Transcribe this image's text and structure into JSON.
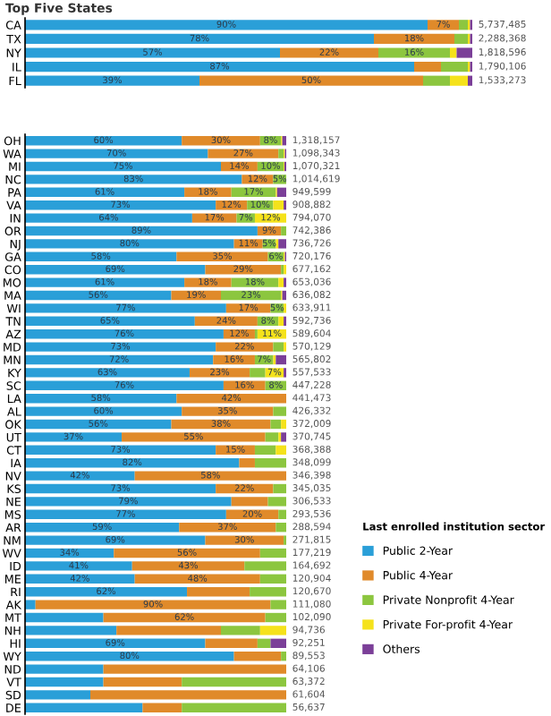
{
  "chart_data": [
    {
      "type": "bar",
      "title": "Top Five States",
      "orientation": "horizontal",
      "stacked": true,
      "legend": false,
      "categories": [
        "CA",
        "TX",
        "NY",
        "IL",
        "FL"
      ],
      "series": [
        {
          "color": "#2a9fd8",
          "values": [
            90,
            78,
            57,
            87,
            39
          ],
          "value_labels": [
            "90%",
            "78%",
            "57%",
            "87%",
            "39%"
          ]
        },
        {
          "color": "#e08a2a",
          "values": [
            7,
            18,
            22,
            6,
            50
          ],
          "value_labels": [
            "7%",
            "18%",
            "22%",
            null,
            "50%"
          ]
        },
        {
          "color": "#8cc63f",
          "values": [
            2,
            3,
            16,
            6,
            6
          ],
          "value_labels": [
            null,
            null,
            "16%",
            null,
            null
          ]
        },
        {
          "color": "#f5e21b",
          "values": [
            0.5,
            0.5,
            1.5,
            0.5,
            4
          ]
        },
        {
          "color": "#7b3f98",
          "values": [
            0.5,
            0.5,
            3.5,
            0.5,
            1
          ]
        }
      ],
      "annotations": [
        "5,737,485",
        "2,288,368",
        "1,818,596",
        "1,790,106",
        "1,533,273"
      ]
    },
    {
      "type": "bar",
      "orientation": "horizontal",
      "stacked": true,
      "legend": "bottom right",
      "legend_title": "Last enrolled institution sector",
      "categories": [
        "OH",
        "WA",
        "MI",
        "NC",
        "PA",
        "VA",
        "IN",
        "OR",
        "NJ",
        "GA",
        "CO",
        "MO",
        "MA",
        "WI",
        "TN",
        "AZ",
        "MD",
        "MN",
        "KY",
        "SC",
        "LA",
        "AL",
        "OK",
        "UT",
        "CT",
        "IA",
        "NV",
        "KS",
        "NE",
        "MS",
        "AR",
        "NM",
        "WV",
        "ID",
        "ME",
        "RI",
        "AK",
        "MT",
        "NH",
        "HI",
        "WY",
        "ND",
        "VT",
        "SD",
        "DE"
      ],
      "series": [
        {
          "name": "Public 2-Year",
          "color": "#2a9fd8",
          "values": [
            60,
            70,
            75,
            83,
            61,
            73,
            64,
            89,
            80,
            58,
            69,
            61,
            56,
            77,
            65,
            76,
            73,
            72,
            63,
            76,
            58,
            60,
            56,
            37,
            73,
            82,
            42,
            73,
            79,
            77,
            59,
            69,
            34,
            41,
            42,
            62,
            4,
            30,
            35,
            69,
            80,
            30,
            30,
            25,
            45
          ],
          "value_labels": [
            "60%",
            "70%",
            "75%",
            "83%",
            "61%",
            "73%",
            "64%",
            "89%",
            "80%",
            "58%",
            "69%",
            "61%",
            "56%",
            "77%",
            "65%",
            "76%",
            "73%",
            "72%",
            "63%",
            "76%",
            "58%",
            "60%",
            "56%",
            "37%",
            "73%",
            "82%",
            "42%",
            "73%",
            "79%",
            "77%",
            "59%",
            "69%",
            "34%",
            "41%",
            "42%",
            "62%",
            null,
            null,
            null,
            "69%",
            "80%",
            null,
            null,
            null,
            null
          ]
        },
        {
          "name": "Public 4-Year",
          "color": "#e08a2a",
          "values": [
            30,
            27,
            14,
            12,
            18,
            12,
            17,
            9,
            11,
            35,
            29,
            18,
            19,
            17,
            24,
            12,
            22,
            16,
            23,
            16,
            42,
            35,
            38,
            55,
            15,
            6,
            58,
            22,
            14,
            20,
            37,
            30,
            56,
            43,
            48,
            24,
            90,
            62,
            40,
            20,
            18,
            70,
            30,
            75,
            15
          ],
          "value_labels": [
            "30%",
            "27%",
            "14%",
            "12%",
            "18%",
            "12%",
            "17%",
            "9%",
            "11%",
            "35%",
            "29%",
            "18%",
            "19%",
            "17%",
            "24%",
            "12%",
            "22%",
            "16%",
            "23%",
            "16%",
            "42%",
            "35%",
            "38%",
            "55%",
            "15%",
            null,
            "58%",
            "22%",
            null,
            "20%",
            "37%",
            "30%",
            "56%",
            "43%",
            "48%",
            null,
            "90%",
            "62%",
            null,
            null,
            null,
            null,
            null,
            null,
            null
          ]
        },
        {
          "name": "Private Nonprofit 4-Year",
          "color": "#8cc63f",
          "values": [
            8,
            2,
            10,
            5,
            17,
            10,
            7,
            2,
            5,
            6,
            1,
            18,
            23,
            5,
            8,
            1,
            4,
            7,
            6,
            8,
            0,
            5,
            4,
            5,
            8,
            12,
            0,
            5,
            7,
            3,
            4,
            1,
            10,
            16,
            10,
            14,
            6,
            8,
            15,
            5,
            2,
            0,
            40,
            0,
            40
          ],
          "value_labels": [
            "8%",
            null,
            "10%",
            "5%",
            "17%",
            "10%",
            "7%",
            null,
            "5%",
            "6%",
            null,
            "18%",
            "23%",
            "5%",
            "8%",
            null,
            null,
            "7%",
            null,
            "8%",
            null,
            null,
            null,
            null,
            null,
            null,
            null,
            null,
            null,
            null,
            null,
            null,
            null,
            null,
            null,
            null,
            null,
            null,
            null,
            null,
            null,
            null,
            null,
            null,
            null
          ]
        },
        {
          "name": "Private For-profit 4-Year",
          "color": "#f5e21b",
          "values": [
            0.5,
            0.5,
            0.3,
            0,
            0.5,
            4,
            12,
            0,
            1,
            0.5,
            1,
            2,
            0.5,
            1,
            2,
            11,
            1,
            1,
            7,
            0,
            0,
            0,
            2,
            1,
            4,
            0,
            0,
            0,
            0,
            0,
            0,
            0,
            0,
            0,
            0,
            0,
            0,
            0,
            10,
            0,
            0,
            0,
            0,
            0,
            0
          ],
          "value_labels": [
            null,
            null,
            null,
            null,
            null,
            null,
            "12%",
            null,
            null,
            null,
            null,
            null,
            null,
            null,
            null,
            "11%",
            null,
            null,
            "7%",
            null,
            null,
            null,
            null,
            null,
            null,
            null,
            null,
            null,
            null,
            null,
            null,
            null,
            null,
            null,
            null,
            null,
            null,
            null,
            null,
            null,
            null,
            null,
            null,
            null,
            null
          ]
        },
        {
          "name": "Others",
          "color": "#7b3f98",
          "values": [
            1.5,
            0.5,
            0.7,
            0,
            3.5,
            1,
            0,
            0,
            3,
            0.5,
            0,
            1,
            1.5,
            0,
            1,
            0,
            0,
            4,
            1,
            0,
            0,
            0,
            0,
            2,
            0,
            0,
            0,
            0,
            0,
            0,
            0,
            0,
            0,
            0,
            0,
            0,
            0,
            0,
            0,
            6,
            0,
            0,
            0,
            0,
            0
          ]
        }
      ],
      "annotations": [
        "1,318,157",
        "1,098,343",
        "1,070,321",
        "1,014,619",
        "949,599",
        "908,882",
        "794,070",
        "742,386",
        "736,726",
        "720,176",
        "677,162",
        "653,036",
        "636,082",
        "633,911",
        "592,736",
        "589,604",
        "570,129",
        "565,802",
        "557,533",
        "447,228",
        "441,473",
        "426,332",
        "372,009",
        "370,745",
        "368,388",
        "348,099",
        "346,398",
        "345,035",
        "306,533",
        "293,536",
        "288,594",
        "271,815",
        "177,219",
        "164,692",
        "120,904",
        "120,670",
        "111,080",
        "102,090",
        "94,736",
        "92,251",
        "89,553",
        "64,106",
        "63,372",
        "61,604",
        "56,637"
      ]
    }
  ]
}
